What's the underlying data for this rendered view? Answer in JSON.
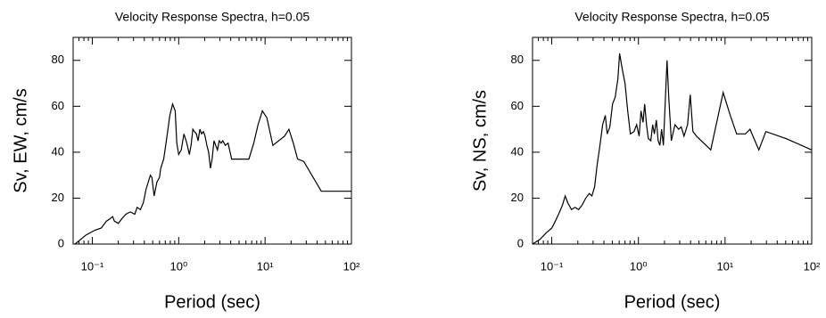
{
  "chart_data": [
    {
      "type": "line",
      "title": "Velocity Response Spectra, h=0.05",
      "y_label": "Sv, EW, cm/s",
      "x_label": "Period (sec)",
      "x_scale": "log",
      "xlim": [
        0.06,
        100
      ],
      "ylim": [
        0,
        90
      ],
      "color": "#000000",
      "minor_ticks": true,
      "xticks": [
        {
          "value": 0.1,
          "label": "10⁻¹"
        },
        {
          "value": 1,
          "label": "10⁰"
        },
        {
          "value": 10,
          "label": "10¹"
        },
        {
          "value": 100,
          "label": "10²"
        }
      ],
      "yticks": [
        0,
        20,
        40,
        60,
        80
      ],
      "x": [
        0.063,
        0.085,
        0.107,
        0.127,
        0.146,
        0.16,
        0.172,
        0.18,
        0.2,
        0.22,
        0.245,
        0.275,
        0.31,
        0.33,
        0.36,
        0.39,
        0.42,
        0.47,
        0.49,
        0.52,
        0.56,
        0.6,
        0.62,
        0.67,
        0.72,
        0.79,
        0.85,
        0.91,
        0.95,
        1.0,
        1.07,
        1.15,
        1.24,
        1.33,
        1.39,
        1.46,
        1.52,
        1.6,
        1.68,
        1.76,
        1.84,
        1.93,
        2.02,
        2.12,
        2.22,
        2.33,
        2.44,
        2.56,
        2.68,
        2.81,
        2.95,
        3.09,
        3.24,
        3.47,
        3.73,
        4.1,
        5.8,
        6.5,
        7.4,
        8.3,
        9.3,
        10.5,
        12.3,
        16.8,
        18.9,
        21.2,
        23.8,
        28,
        44.8,
        100
      ],
      "values": [
        0,
        4,
        6,
        7,
        10,
        11,
        12,
        10,
        9,
        11,
        13,
        14,
        13,
        16,
        15,
        18,
        24,
        30,
        29,
        21,
        27,
        29,
        33,
        37,
        45,
        56,
        61,
        58,
        44,
        39,
        41,
        48,
        44,
        39,
        43,
        50,
        49,
        48,
        45,
        50,
        48,
        49,
        47,
        43,
        40,
        33,
        37,
        45,
        43,
        41,
        45,
        44,
        45,
        43,
        44,
        37,
        37,
        37,
        44,
        52,
        58,
        55,
        43,
        47,
        50,
        44,
        37,
        36,
        23,
        23
      ]
    },
    {
      "type": "line",
      "title": "Velocity Response Spectra, h=0.05",
      "y_label": "Sv, NS, cm/s",
      "x_label": "Period (sec)",
      "x_scale": "log",
      "xlim": [
        0.06,
        100
      ],
      "ylim": [
        0,
        90
      ],
      "color": "#000000",
      "minor_ticks": true,
      "xticks": [
        {
          "value": 0.1,
          "label": "10⁻¹"
        },
        {
          "value": 1,
          "label": "10⁰"
        },
        {
          "value": 10,
          "label": "10¹"
        },
        {
          "value": 100,
          "label": "10²"
        }
      ],
      "yticks": [
        0,
        20,
        40,
        60,
        80
      ],
      "x": [
        0.06,
        0.073,
        0.087,
        0.1,
        0.11,
        0.12,
        0.133,
        0.143,
        0.153,
        0.169,
        0.185,
        0.204,
        0.224,
        0.247,
        0.271,
        0.291,
        0.312,
        0.335,
        0.36,
        0.387,
        0.415,
        0.436,
        0.468,
        0.503,
        0.54,
        0.58,
        0.607,
        0.652,
        0.7,
        0.752,
        0.808,
        0.888,
        0.954,
        1.02,
        1.07,
        1.13,
        1.18,
        1.24,
        1.3,
        1.39,
        1.46,
        1.53,
        1.61,
        1.69,
        1.77,
        1.85,
        1.94,
        2.04,
        2.14,
        2.24,
        2.4,
        2.64,
        2.91,
        3.12,
        3.36,
        3.69,
        3.96,
        4.26,
        4.68,
        6.84,
        9.5,
        11.5,
        13.6,
        17.2,
        19.4,
        24.5,
        29.6,
        50,
        100
      ],
      "values": [
        0,
        2,
        5,
        7,
        10,
        13,
        17,
        21,
        18,
        15,
        16,
        15,
        17,
        20,
        22,
        21,
        25,
        35,
        43,
        52,
        56,
        48,
        51,
        61,
        64,
        72,
        83,
        76,
        70,
        58,
        48,
        49,
        52,
        47,
        58,
        53,
        61,
        52,
        46,
        45,
        52,
        48,
        54,
        45,
        43,
        50,
        43,
        62,
        80,
        64,
        45,
        52,
        50,
        51,
        47,
        52,
        65,
        49,
        47,
        41,
        66,
        56,
        48,
        48,
        50,
        41,
        49,
        46,
        41
      ]
    }
  ]
}
